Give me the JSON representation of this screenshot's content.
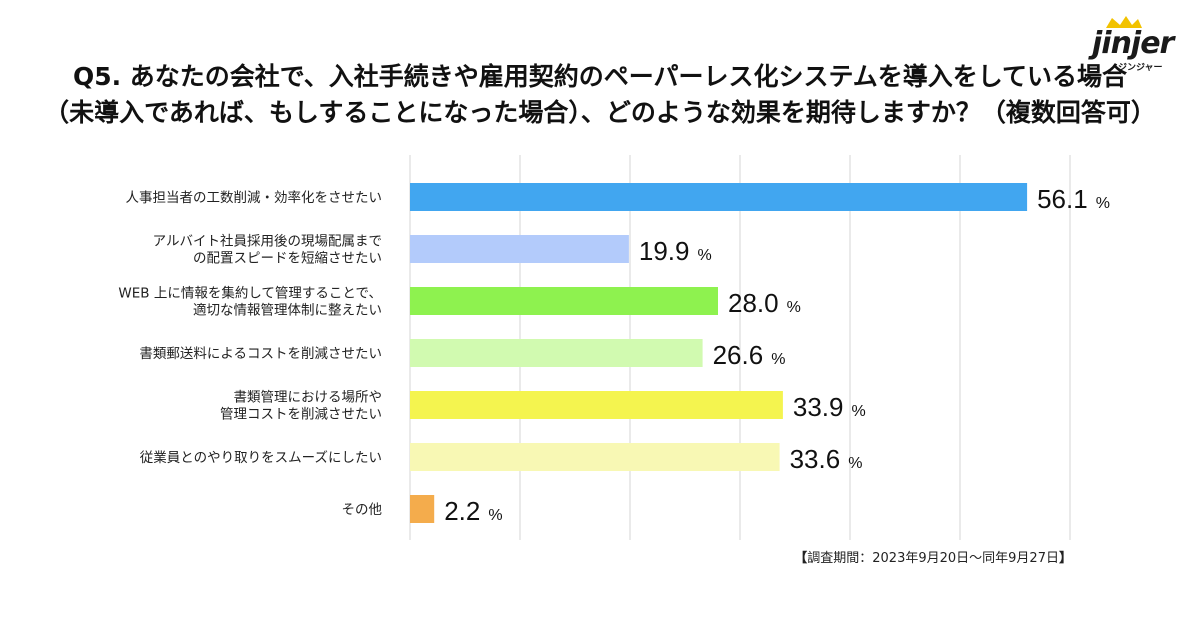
{
  "title": {
    "line1": "Q5. あなたの会社で、入社手続きや雇用契約のペーパーレス化システムを導入をしている場合",
    "line2": "（未導入であれば、もしすることになった場合）、どのような効果を期待しますか？（複数回答可）"
  },
  "logo": {
    "word": "jinjer",
    "sub": "ジンジャー",
    "color": "#f2c200"
  },
  "note": {
    "open": "【",
    "text": "調査期間：2023年9月20日〜同年9月27日",
    "close": "】"
  },
  "chart_data": {
    "type": "bar",
    "orientation": "horizontal",
    "categories": [
      [
        "人事担当者の工数削減・効率化をさせたい"
      ],
      [
        "アルバイト社員採用後の現場配属まで",
        "の配置スピードを短縮させたい"
      ],
      [
        "WEB 上に情報を集約して管理することで、",
        "適切な情報管理体制に整えたい"
      ],
      [
        "書類郵送料によるコストを削減させたい"
      ],
      [
        "書類管理における場所や",
        "管理コストを削減させたい"
      ],
      [
        "従業員とのやり取りをスムーズにしたい"
      ],
      [
        "その他"
      ]
    ],
    "values": [
      56.1,
      19.9,
      28.0,
      26.6,
      33.9,
      33.6,
      2.2
    ],
    "value_labels": [
      "56.1",
      "19.9",
      "28.0",
      "26.6",
      "33.9",
      "33.6",
      "2.2"
    ],
    "unit": "%",
    "colors": [
      "#41a6f0",
      "#b3cbfb",
      "#8ef24f",
      "#d1fab0",
      "#f4f44f",
      "#f8f8b4",
      "#f4ac4c"
    ],
    "xlim": [
      0,
      60
    ],
    "grid": true
  }
}
